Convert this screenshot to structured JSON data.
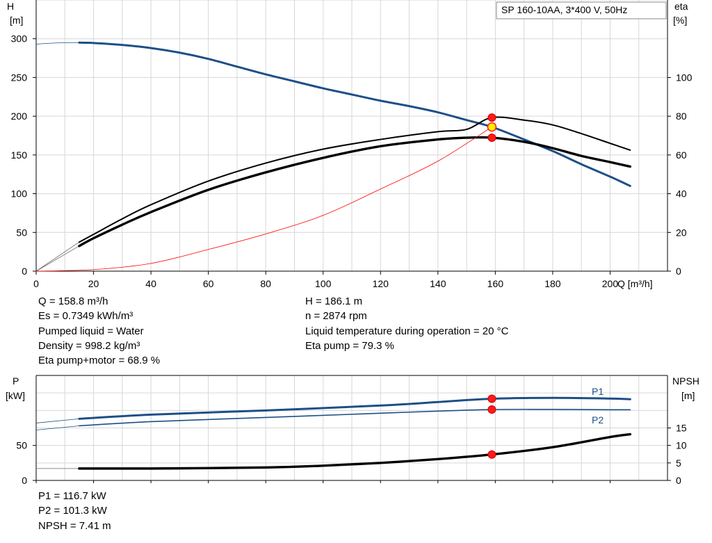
{
  "chart_data": [
    {
      "type": "line",
      "title": "SP 160-10AA, 3*400 V, 50Hz",
      "xlabel": "Q [m³/h]",
      "ylabel_left": "H\n[m]",
      "ylabel_right": "eta\n[%]",
      "xlim": [
        0,
        220
      ],
      "ylim_left": [
        0,
        350
      ],
      "ylim_right": [
        0,
        140
      ],
      "x_ticks": [
        0,
        20,
        40,
        60,
        80,
        100,
        120,
        140,
        160,
        180,
        200
      ],
      "y_ticks_left": [
        0,
        50,
        100,
        150,
        200,
        250,
        300
      ],
      "y_ticks_right": [
        0,
        20,
        40,
        60,
        80,
        100
      ],
      "grid": true,
      "series": [
        {
          "color": "#1d4f87",
          "axis": "left",
          "width": 3,
          "points": [
            [
              15,
              295
            ],
            [
              20,
              294.5
            ],
            [
              30,
              292
            ],
            [
              40,
              288
            ],
            [
              50,
              282
            ],
            [
              60,
              274
            ],
            [
              70,
              264
            ],
            [
              80,
              254
            ],
            [
              90,
              245
            ],
            [
              100,
              236
            ],
            [
              110,
              228
            ],
            [
              120,
              220
            ],
            [
              130,
              213
            ],
            [
              140,
              205
            ],
            [
              150,
              195
            ],
            [
              158.8,
              186.1
            ],
            [
              170,
              170
            ],
            [
              180,
              155
            ],
            [
              190,
              138
            ],
            [
              200,
              122
            ],
            [
              207,
              110
            ]
          ]
        },
        {
          "color": "#000000",
          "axis": "right",
          "width": 2,
          "points": [
            [
              15,
              15
            ],
            [
              20,
              19
            ],
            [
              30,
              27
            ],
            [
              40,
              34.3
            ],
            [
              60,
              46.5
            ],
            [
              80,
              55.8
            ],
            [
              100,
              63
            ],
            [
              120,
              68
            ],
            [
              140,
              72
            ],
            [
              158.8,
              79.3
            ],
            [
              150,
              73.2
            ],
            [
              170,
              78
            ],
            [
              180,
              75.5
            ],
            [
              190,
              71
            ],
            [
              200,
              66
            ],
            [
              207,
              62.5
            ]
          ]
        },
        {
          "color": "#000000",
          "axis": "right",
          "width": 3.4,
          "points": [
            [
              15,
              13
            ],
            [
              20,
              17
            ],
            [
              30,
              24
            ],
            [
              40,
              30.5
            ],
            [
              60,
              42
            ],
            [
              80,
              51
            ],
            [
              100,
              58.5
            ],
            [
              120,
              64.5
            ],
            [
              140,
              68
            ],
            [
              150,
              68.9
            ],
            [
              158.8,
              68.9
            ],
            [
              170,
              66.8
            ],
            [
              180,
              63.5
            ],
            [
              190,
              59.5
            ],
            [
              200,
              56.3
            ],
            [
              207,
              54
            ]
          ]
        },
        {
          "color": "#ff0000",
          "axis": "left",
          "width": 0.8,
          "points": [
            [
              0,
              0
            ],
            [
              20,
              2
            ],
            [
              40,
              10
            ],
            [
              60,
              28
            ],
            [
              80,
              48
            ],
            [
              100,
              72
            ],
            [
              120,
              106
            ],
            [
              140,
              142
            ],
            [
              158.8,
              186.1
            ]
          ]
        }
      ],
      "operating_point": {
        "x": 158.8,
        "H": 186.1,
        "eta_pump": 79.3,
        "eta_total": 68.9
      }
    },
    {
      "type": "line",
      "xlabel": "",
      "ylabel_left": "P\n[kW]",
      "ylabel_right": "NPSH\n[m]",
      "xlim": [
        0,
        220
      ],
      "ylim_left": [
        0,
        150
      ],
      "ylim_right": [
        0,
        30
      ],
      "y_ticks_left": [
        0,
        50
      ],
      "y_ticks_right": [
        0,
        5,
        10,
        15
      ],
      "grid": true,
      "series": [
        {
          "name": "P1",
          "color": "#1d4f87",
          "axis": "left",
          "width": 3,
          "points": [
            [
              15,
              88
            ],
            [
              40,
              94
            ],
            [
              80,
              100
            ],
            [
              120,
              107
            ],
            [
              140,
              112
            ],
            [
              158.8,
              116.7
            ],
            [
              180,
              118
            ],
            [
              200,
              117
            ],
            [
              207,
              116
            ]
          ]
        },
        {
          "name": "P2",
          "color": "#1d4f87",
          "axis": "left",
          "width": 1.6,
          "points": [
            [
              15,
              78
            ],
            [
              40,
              84
            ],
            [
              80,
              90
            ],
            [
              120,
              96
            ],
            [
              140,
              99
            ],
            [
              158.8,
              101.3
            ],
            [
              180,
              101.5
            ],
            [
              200,
              101
            ],
            [
              207,
              101
            ]
          ]
        },
        {
          "color": "#000000",
          "axis": "right",
          "width": 3.4,
          "points": [
            [
              15,
              3.4
            ],
            [
              40,
              3.4
            ],
            [
              80,
              3.7
            ],
            [
              100,
              4.2
            ],
            [
              120,
              5
            ],
            [
              140,
              6.1
            ],
            [
              158.8,
              7.41
            ],
            [
              180,
              9.5
            ],
            [
              200,
              12.4
            ],
            [
              207,
              13.2
            ]
          ]
        }
      ]
    }
  ],
  "info": {
    "left": [
      "Q = 158.8 m³/h",
      "Es = 0.7349 kWh/m³",
      "Pumped liquid = Water",
      "Density = 998.2 kg/m³",
      "Eta pump+motor = 68.9 %"
    ],
    "right": [
      "H = 186.1 m",
      "n = 2874 rpm",
      "Liquid temperature during operation = 20 °C",
      "Eta pump = 79.3 %"
    ],
    "bottom": [
      "P1 = 116.7 kW",
      "P2 = 101.3 kW",
      "NPSH = 7.41 m"
    ]
  }
}
